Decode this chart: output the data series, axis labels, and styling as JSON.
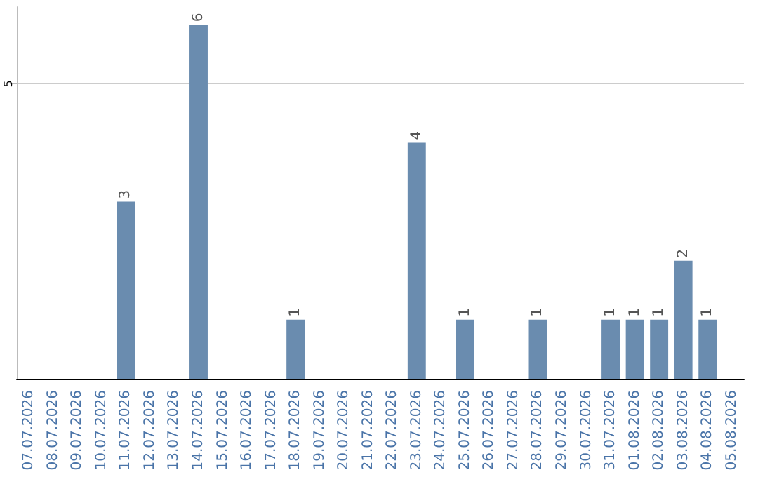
{
  "chart_data": {
    "type": "bar",
    "categories": [
      "07.07.2026",
      "08.07.2026",
      "09.07.2026",
      "10.07.2026",
      "11.07.2026",
      "12.07.2026",
      "13.07.2026",
      "14.07.2026",
      "15.07.2026",
      "16.07.2026",
      "17.07.2026",
      "18.07.2026",
      "19.07.2026",
      "20.07.2026",
      "21.07.2026",
      "22.07.2026",
      "23.07.2026",
      "24.07.2026",
      "25.07.2026",
      "26.07.2026",
      "27.07.2026",
      "28.07.2026",
      "29.07.2026",
      "30.07.2026",
      "31.07.2026",
      "01.08.2026",
      "02.08.2026",
      "03.08.2026",
      "04.08.2026",
      "05.08.2026"
    ],
    "values": [
      null,
      null,
      null,
      null,
      3,
      null,
      null,
      6,
      null,
      null,
      null,
      1,
      null,
      null,
      null,
      null,
      4,
      null,
      1,
      null,
      null,
      1,
      null,
      null,
      1,
      1,
      1,
      2,
      1,
      null
    ],
    "color": "#6a8caf",
    "ylim": [
      0,
      6.3
    ],
    "yticks": [
      5
    ],
    "grid": "y",
    "data_labels": true
  }
}
